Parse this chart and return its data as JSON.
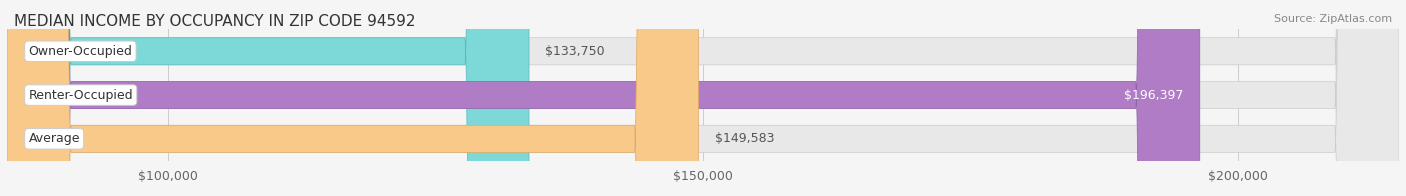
{
  "title": "MEDIAN INCOME BY OCCUPANCY IN ZIP CODE 94592",
  "source": "Source: ZipAtlas.com",
  "categories": [
    "Owner-Occupied",
    "Renter-Occupied",
    "Average"
  ],
  "values": [
    133750,
    196397,
    149583
  ],
  "bar_colors": [
    "#7dd8d8",
    "#b07cc6",
    "#f9c98a"
  ],
  "bar_edge_colors": [
    "#5ababa",
    "#9060aa",
    "#e0a860"
  ],
  "label_colors": [
    "#555555",
    "#ffffff",
    "#555555"
  ],
  "value_labels": [
    "$133,750",
    "$196,397",
    "$149,583"
  ],
  "xmin": 85000,
  "xmax": 215000,
  "xticks": [
    100000,
    150000,
    200000
  ],
  "xtick_labels": [
    "$100,000",
    "$150,000",
    "$200,000"
  ],
  "background_color": "#f5f5f5",
  "bar_background_color": "#e8e8e8",
  "title_fontsize": 11,
  "source_fontsize": 8,
  "tick_fontsize": 9,
  "bar_label_fontsize": 9,
  "value_label_fontsize": 9
}
